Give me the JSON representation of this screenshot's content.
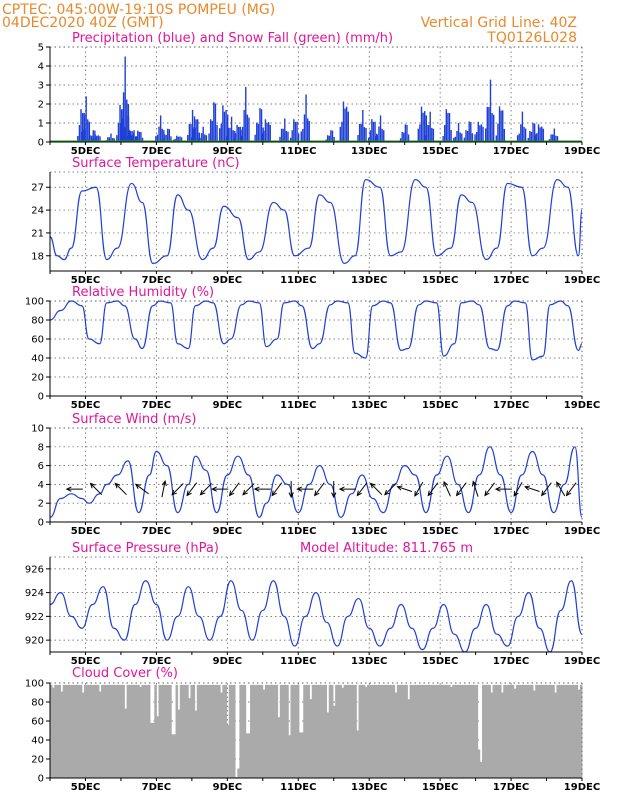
{
  "header": {
    "line1": "CPTEC:   045:00W-19:10S   POMPEU (MG)",
    "line2": "04DEC2020 40Z (GMT)",
    "grid_note": "Vertical Grid Line: 40Z",
    "code": "TQ0126L028"
  },
  "colors": {
    "header": "#e8892b",
    "title": "#e0169a",
    "line": "#1f3fd6",
    "precip": "#1f3fd6",
    "snow": "#1a9a1a",
    "cloud": "#aaaaaa",
    "arrow": "#000000"
  },
  "x_ticks": [
    "5DEC",
    "7DEC",
    "9DEC",
    "11DEC",
    "13DEC",
    "15DEC",
    "17DEC",
    "19DEC"
  ],
  "chart_data": [
    {
      "type": "bar",
      "title": "Precipitation (blue) and Snow Fall (green) (mm/h)",
      "ylim": [
        0,
        5
      ],
      "yticks": [
        "0",
        "1",
        "2",
        "3",
        "4",
        "5"
      ],
      "series": [
        {
          "name": "Precipitation",
          "x_days": [
            0.9,
            1.0,
            1.2,
            1.3,
            1.7,
            2.0,
            2.1,
            2.15,
            2.25,
            2.35,
            2.5,
            3.1,
            3.3,
            3.6,
            4.0,
            4.1,
            4.3,
            4.6,
            4.9,
            5.1,
            5.3,
            5.5,
            5.9,
            6.1,
            6.6,
            6.9,
            7.2,
            7.9,
            8.3,
            8.8,
            9.1,
            9.3,
            10.0,
            10.5,
            10.7,
            11.2,
            11.5,
            11.8,
            12.1,
            12.4,
            12.7,
            13.3,
            13.6,
            13.8,
            14.2
          ],
          "values": [
            2.3,
            2.4,
            0.8,
            0.6,
            0.5,
            2.6,
            4.5,
            1.8,
            1.0,
            0.7,
            0.8,
            1.4,
            0.9,
            0.5,
            1.9,
            1.8,
            0.8,
            2.7,
            2.9,
            1.5,
            1.2,
            2.9,
            2.3,
            1.8,
            1.4,
            1.6,
            2.5,
            0.8,
            3.2,
            1.9,
            1.6,
            1.4,
            1.2,
            2.8,
            1.8,
            2.3,
            1.0,
            1.4,
            1.6,
            3.7,
            2.5,
            1.6,
            1.3,
            1.4,
            0.8
          ]
        },
        {
          "name": "Snow Fall",
          "x_days": [],
          "values": []
        }
      ]
    },
    {
      "type": "line",
      "title": "Surface Temperature (nC)",
      "ylim": [
        16,
        29
      ],
      "yticks": [
        "18",
        "21",
        "24",
        "27"
      ],
      "series": [
        {
          "name": "Temperature",
          "x_days": [
            0,
            0.2,
            0.4,
            0.6,
            0.9,
            1.3,
            1.6,
            1.9,
            2.3,
            2.6,
            2.9,
            3.3,
            3.6,
            3.9,
            4.3,
            4.6,
            4.9,
            5.3,
            5.6,
            5.9,
            6.3,
            6.6,
            6.9,
            7.3,
            7.6,
            7.9,
            8.3,
            8.6,
            8.9,
            9.3,
            9.6,
            9.9,
            10.3,
            10.6,
            10.9,
            11.3,
            11.6,
            11.9,
            12.3,
            12.6,
            12.9,
            13.3,
            13.6,
            13.9,
            14.3,
            14.6,
            14.9,
            15.0
          ],
          "values": [
            20.5,
            18,
            17.5,
            19,
            26.5,
            27,
            17.5,
            19,
            27.5,
            25,
            17,
            18,
            26,
            24,
            17.5,
            19,
            24.5,
            23,
            17.5,
            18.5,
            25,
            24,
            18,
            19,
            26,
            25,
            17,
            18,
            28,
            27,
            18,
            18.5,
            28,
            27,
            18,
            19,
            26,
            25,
            17.5,
            19,
            27.5,
            27,
            18,
            19,
            28,
            27,
            18,
            24
          ]
        }
      ]
    },
    {
      "type": "line",
      "title": "Relative Humidity (%)",
      "ylim": [
        0,
        100
      ],
      "yticks": [
        "0",
        "20",
        "40",
        "60",
        "80",
        "100"
      ],
      "series": [
        {
          "name": "Relative Humidity",
          "x_days": [
            0,
            0.3,
            0.6,
            0.9,
            1.1,
            1.4,
            1.6,
            1.9,
            2.1,
            2.4,
            2.6,
            2.9,
            3.1,
            3.4,
            3.6,
            3.9,
            4.1,
            4.4,
            4.6,
            4.9,
            5.1,
            5.4,
            5.6,
            5.9,
            6.1,
            6.4,
            6.6,
            6.9,
            7.1,
            7.4,
            7.6,
            7.9,
            8.1,
            8.4,
            8.6,
            8.9,
            9.1,
            9.4,
            9.6,
            9.9,
            10.1,
            10.4,
            10.6,
            10.9,
            11.1,
            11.4,
            11.6,
            11.9,
            12.1,
            12.4,
            12.6,
            12.9,
            13.1,
            13.4,
            13.6,
            13.9,
            14.1,
            14.4,
            14.6,
            14.9,
            15.0
          ],
          "values": [
            80,
            90,
            100,
            95,
            60,
            55,
            98,
            100,
            95,
            60,
            50,
            95,
            100,
            98,
            55,
            50,
            95,
            100,
            98,
            55,
            60,
            96,
            100,
            98,
            52,
            60,
            98,
            100,
            95,
            50,
            55,
            96,
            100,
            98,
            45,
            40,
            95,
            100,
            98,
            48,
            50,
            96,
            100,
            98,
            42,
            55,
            98,
            100,
            96,
            50,
            48,
            95,
            100,
            98,
            38,
            42,
            96,
            100,
            95,
            48,
            55
          ]
        }
      ]
    },
    {
      "type": "line",
      "title": "Surface Wind (m/s)",
      "ylim": [
        0,
        10
      ],
      "yticks": [
        "0",
        "2",
        "4",
        "6",
        "8",
        "10"
      ],
      "series": [
        {
          "name": "Wind speed",
          "x_days": [
            0,
            0.3,
            0.6,
            0.9,
            1.1,
            1.4,
            1.6,
            1.9,
            2.2,
            2.5,
            2.8,
            3.0,
            3.3,
            3.6,
            3.9,
            4.1,
            4.4,
            4.7,
            5.0,
            5.3,
            5.6,
            5.9,
            6.1,
            6.4,
            6.7,
            7.0,
            7.3,
            7.6,
            7.9,
            8.2,
            8.5,
            8.8,
            9.1,
            9.4,
            9.7,
            10.0,
            10.3,
            10.6,
            10.9,
            11.2,
            11.5,
            11.8,
            12.1,
            12.4,
            12.7,
            13.0,
            13.3,
            13.6,
            13.9,
            14.2,
            14.5,
            14.8,
            15.0
          ],
          "values": [
            0.5,
            2.5,
            3,
            2.5,
            2,
            3,
            4,
            5,
            6.5,
            1,
            5,
            7.5,
            6,
            1,
            4,
            7,
            5.5,
            1,
            5,
            7,
            5,
            0.5,
            2,
            5,
            4,
            1,
            4,
            6,
            4,
            0.5,
            3,
            5,
            2.5,
            1,
            4,
            6,
            5,
            1,
            5,
            7,
            4,
            1,
            5,
            8,
            5,
            1,
            5,
            7.5,
            5,
            1,
            4,
            8,
            0.5
          ]
        }
      ],
      "arrows": [
        {
          "day": 0.7,
          "u": -1,
          "v": 0
        },
        {
          "day": 1.3,
          "u": -0.7,
          "v": 0.7
        },
        {
          "day": 2.0,
          "u": -0.7,
          "v": 0.7
        },
        {
          "day": 2.6,
          "u": -0.8,
          "v": 0.6
        },
        {
          "day": 3.2,
          "u": 0.2,
          "v": 1
        },
        {
          "day": 3.6,
          "u": -0.7,
          "v": -0.7
        },
        {
          "day": 4.0,
          "u": -0.6,
          "v": -0.8
        },
        {
          "day": 4.4,
          "u": -0.7,
          "v": -0.7
        },
        {
          "day": 4.8,
          "u": -1,
          "v": 0
        },
        {
          "day": 5.2,
          "u": -0.6,
          "v": -0.8
        },
        {
          "day": 5.6,
          "u": -0.7,
          "v": -0.7
        },
        {
          "day": 6.0,
          "u": -1,
          "v": 0
        },
        {
          "day": 6.4,
          "u": -0.6,
          "v": -0.8
        },
        {
          "day": 6.8,
          "u": 0,
          "v": -1
        },
        {
          "day": 7.2,
          "u": -1,
          "v": 0
        },
        {
          "day": 7.6,
          "u": -0.6,
          "v": -0.8
        },
        {
          "day": 8.0,
          "u": 0,
          "v": -1
        },
        {
          "day": 8.4,
          "u": -1,
          "v": 0
        },
        {
          "day": 8.8,
          "u": -0.6,
          "v": -0.8
        },
        {
          "day": 9.2,
          "u": -0.7,
          "v": 0.7
        },
        {
          "day": 9.6,
          "u": -0.7,
          "v": -0.7
        },
        {
          "day": 10.0,
          "u": -0.9,
          "v": 0.3
        },
        {
          "day": 10.4,
          "u": -0.5,
          "v": -0.85
        },
        {
          "day": 10.8,
          "u": -0.6,
          "v": -0.8
        },
        {
          "day": 11.2,
          "u": -0.4,
          "v": 0.9
        },
        {
          "day": 11.6,
          "u": -0.6,
          "v": -0.8
        },
        {
          "day": 12.0,
          "u": -0.3,
          "v": 0.95
        },
        {
          "day": 12.4,
          "u": -0.6,
          "v": -0.8
        },
        {
          "day": 12.8,
          "u": -1,
          "v": 0
        },
        {
          "day": 13.2,
          "u": -0.5,
          "v": -0.85
        },
        {
          "day": 13.6,
          "u": -0.9,
          "v": 0.3
        },
        {
          "day": 14.0,
          "u": -0.6,
          "v": -0.8
        },
        {
          "day": 14.4,
          "u": -0.5,
          "v": 0.85
        },
        {
          "day": 14.7,
          "u": -0.6,
          "v": -0.8
        }
      ]
    },
    {
      "type": "line",
      "title": "Surface Pressure (hPa)",
      "annotation": "Model Altitude: 811.765 m",
      "ylim": [
        919,
        927
      ],
      "yticks": [
        "920",
        "922",
        "924",
        "926"
      ],
      "series": [
        {
          "name": "Pressure",
          "x_days": [
            0,
            0.3,
            0.6,
            0.9,
            1.2,
            1.5,
            1.8,
            2.1,
            2.4,
            2.7,
            3.0,
            3.3,
            3.6,
            3.9,
            4.2,
            4.5,
            4.8,
            5.1,
            5.4,
            5.7,
            6.0,
            6.3,
            6.6,
            6.9,
            7.2,
            7.5,
            7.8,
            8.1,
            8.4,
            8.7,
            9.0,
            9.3,
            9.6,
            9.9,
            10.2,
            10.5,
            10.8,
            11.1,
            11.4,
            11.7,
            12.0,
            12.3,
            12.6,
            12.9,
            13.2,
            13.5,
            13.8,
            14.1,
            14.4,
            14.7,
            15.0
          ],
          "values": [
            923,
            924,
            922,
            921,
            923,
            924.5,
            921,
            920,
            923,
            925,
            923,
            920,
            922,
            924.5,
            922,
            920,
            922,
            925,
            922.5,
            920,
            922.5,
            925,
            922,
            919.5,
            922,
            924,
            921.5,
            919.5,
            922,
            923.5,
            921,
            919.5,
            921,
            923,
            921,
            919.2,
            921,
            923,
            920.5,
            919,
            921,
            923,
            920.5,
            919.5,
            922,
            924,
            921,
            919,
            922.5,
            925,
            920.5
          ]
        }
      ]
    },
    {
      "type": "bar",
      "title": "Cloud Cover (%)",
      "ylim": [
        0,
        100
      ],
      "yticks": [
        "0",
        "20",
        "40",
        "60",
        "80",
        "100"
      ],
      "base_value": 98,
      "dips": [
        {
          "day": 0.05,
          "value": 95
        },
        {
          "day": 0.3,
          "value": 91
        },
        {
          "day": 0.9,
          "value": 90
        },
        {
          "day": 1.4,
          "value": 91
        },
        {
          "day": 2.1,
          "value": 73
        },
        {
          "day": 2.5,
          "value": 96
        },
        {
          "day": 2.85,
          "value": 58
        },
        {
          "day": 3.0,
          "value": 65
        },
        {
          "day": 3.45,
          "value": 46
        },
        {
          "day": 3.6,
          "value": 72
        },
        {
          "day": 3.9,
          "value": 84
        },
        {
          "day": 4.1,
          "value": 71
        },
        {
          "day": 4.8,
          "value": 90
        },
        {
          "day": 5.0,
          "value": 56
        },
        {
          "day": 5.2,
          "value": 1
        },
        {
          "day": 5.3,
          "value": 10
        },
        {
          "day": 5.55,
          "value": 47
        },
        {
          "day": 6.0,
          "value": 93
        },
        {
          "day": 6.4,
          "value": 64
        },
        {
          "day": 6.7,
          "value": 45
        },
        {
          "day": 7.05,
          "value": 48
        },
        {
          "day": 7.3,
          "value": 83
        },
        {
          "day": 7.8,
          "value": 69
        },
        {
          "day": 8.0,
          "value": 76
        },
        {
          "day": 8.2,
          "value": 95
        },
        {
          "day": 8.65,
          "value": 50
        },
        {
          "day": 8.9,
          "value": 96
        },
        {
          "day": 9.7,
          "value": 90
        },
        {
          "day": 10.1,
          "value": 83
        },
        {
          "day": 11.3,
          "value": 96
        },
        {
          "day": 12.05,
          "value": 30
        },
        {
          "day": 12.1,
          "value": 17
        },
        {
          "day": 12.4,
          "value": 90
        },
        {
          "day": 12.7,
          "value": 90
        },
        {
          "day": 13.1,
          "value": 94
        },
        {
          "day": 13.6,
          "value": 92
        },
        {
          "day": 14.2,
          "value": 90
        },
        {
          "day": 14.9,
          "value": 93
        }
      ]
    }
  ]
}
